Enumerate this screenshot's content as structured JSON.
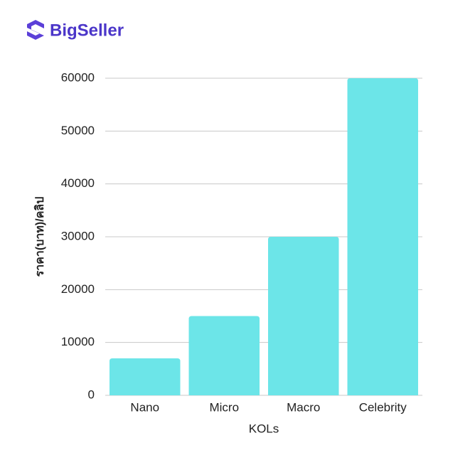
{
  "logo": "BigSeller",
  "chart_data": {
    "type": "bar",
    "categories": [
      "Nano",
      "Micro",
      "Macro",
      "Celebrity"
    ],
    "values": [
      7000,
      15000,
      30000,
      60000
    ],
    "color": "#6ce5e8",
    "xlabel": "KOLs",
    "ylabel": "ราคา(บาท)/คลิป",
    "ylim": [
      0,
      60000
    ],
    "yticks": [
      0,
      10000,
      20000,
      30000,
      40000,
      50000,
      60000
    ],
    "grid": true
  }
}
